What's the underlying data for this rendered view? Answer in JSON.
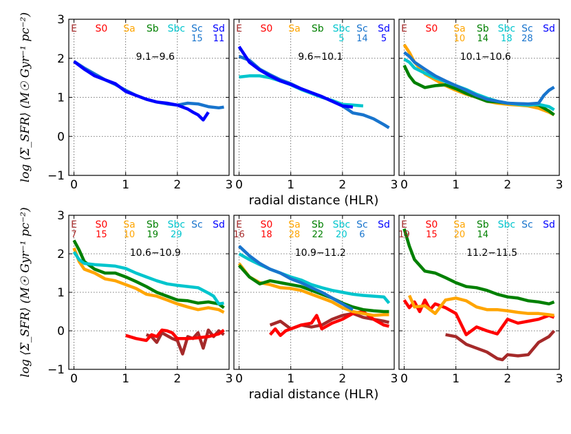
{
  "chart_data": {
    "type": "line",
    "figure": {
      "ylabel": "log ⟨Σ_SFR⟩ (M☉ Gyr⁻¹ pc⁻²)",
      "xlabel": "radial distance (HLR)",
      "xlim": [
        -0.1,
        3.0
      ],
      "ylim": [
        -1,
        3
      ],
      "xticks": [
        "0",
        "1",
        "2",
        "3"
      ],
      "yticks": [
        "−1",
        "0",
        "1",
        "2",
        "3"
      ],
      "grid": true
    },
    "morph_types": [
      "E",
      "S0",
      "Sa",
      "Sb",
      "Sbc",
      "Sc",
      "Sd"
    ],
    "morph_colors": {
      "E": "#a52a2a",
      "S0": "#ff0000",
      "Sa": "#ffa500",
      "Sb": "#008000",
      "Sbc": "#00c5cd",
      "Sc": "#1874cd",
      "Sd": "#0000ff"
    },
    "panels": [
      {
        "mass_range": "9.1−9.6",
        "counts": {
          "Sc": "15",
          "Sd": "11"
        },
        "series": [
          {
            "name": "Sc",
            "x": [
              0,
              0.2,
              0.4,
              0.6,
              0.8,
              1.0,
              1.2,
              1.4,
              1.6,
              1.8,
              2.0,
              2.2,
              2.4,
              2.6,
              2.8,
              2.9
            ],
            "y": [
              1.92,
              1.75,
              1.6,
              1.45,
              1.33,
              1.18,
              1.05,
              0.95,
              0.88,
              0.83,
              0.8,
              0.85,
              0.83,
              0.76,
              0.73,
              0.75
            ]
          },
          {
            "name": "Sd",
            "x": [
              0,
              0.2,
              0.4,
              0.6,
              0.8,
              1.0,
              1.2,
              1.4,
              1.6,
              1.8,
              2.0,
              2.2,
              2.3,
              2.4,
              2.5,
              2.6
            ],
            "y": [
              1.92,
              1.72,
              1.55,
              1.45,
              1.35,
              1.15,
              1.05,
              0.95,
              0.88,
              0.85,
              0.8,
              0.7,
              0.62,
              0.55,
              0.42,
              0.62
            ]
          }
        ]
      },
      {
        "mass_range": "9.6−10.1",
        "counts": {
          "Sbc": "5",
          "Sc": "14",
          "Sd": "5"
        },
        "series": [
          {
            "name": "Sbc",
            "x": [
              0,
              0.2,
              0.4,
              0.6,
              0.8,
              1.0,
              1.2,
              1.4,
              1.6,
              1.8,
              2.0,
              2.2,
              2.4
            ],
            "y": [
              1.52,
              1.55,
              1.55,
              1.5,
              1.42,
              1.32,
              1.2,
              1.1,
              1.0,
              0.92,
              0.82,
              0.8,
              0.78
            ]
          },
          {
            "name": "Sc",
            "x": [
              0,
              0.2,
              0.4,
              0.6,
              0.8,
              1.0,
              1.2,
              1.4,
              1.6,
              1.8,
              2.0,
              2.2,
              2.4,
              2.6,
              2.8,
              2.9
            ],
            "y": [
              2.05,
              1.95,
              1.72,
              1.58,
              1.45,
              1.35,
              1.22,
              1.12,
              1.02,
              0.9,
              0.78,
              0.6,
              0.55,
              0.45,
              0.3,
              0.22
            ]
          },
          {
            "name": "Sd",
            "x": [
              0,
              0.2,
              0.4,
              0.6,
              0.8,
              1.0,
              1.2,
              1.4,
              1.6,
              1.8,
              2.0,
              2.2
            ],
            "y": [
              2.3,
              1.9,
              1.7,
              1.55,
              1.42,
              1.33,
              1.22,
              1.12,
              1.02,
              0.9,
              0.78,
              0.75
            ]
          }
        ]
      },
      {
        "mass_range": "10.1−10.6",
        "counts": {
          "Sa": "10",
          "Sb": "14",
          "Sbc": "18",
          "Sc": "28"
        },
        "series": [
          {
            "name": "Sa",
            "x": [
              0,
              0.1,
              0.2,
              0.4,
              0.6,
              0.8,
              1.0,
              1.2,
              1.4,
              1.6,
              1.8,
              2.0,
              2.2,
              2.4,
              2.6,
              2.8,
              2.9
            ],
            "y": [
              2.35,
              2.15,
              1.9,
              1.6,
              1.45,
              1.3,
              1.18,
              1.08,
              1.0,
              0.9,
              0.85,
              0.82,
              0.8,
              0.78,
              0.72,
              0.62,
              0.55
            ]
          },
          {
            "name": "Sb",
            "x": [
              0,
              0.1,
              0.2,
              0.4,
              0.6,
              0.8,
              1.0,
              1.2,
              1.4,
              1.6,
              1.8,
              2.0,
              2.2,
              2.4,
              2.6,
              2.8,
              2.9
            ],
            "y": [
              1.82,
              1.55,
              1.38,
              1.25,
              1.3,
              1.32,
              1.22,
              1.1,
              1.0,
              0.9,
              0.88,
              0.85,
              0.83,
              0.82,
              0.8,
              0.65,
              0.55
            ]
          },
          {
            "name": "Sbc",
            "x": [
              0,
              0.1,
              0.2,
              0.4,
              0.6,
              0.8,
              1.0,
              1.2,
              1.4,
              1.6,
              1.8,
              2.0,
              2.2,
              2.4,
              2.6,
              2.8,
              2.9
            ],
            "y": [
              1.98,
              1.9,
              1.75,
              1.62,
              1.5,
              1.4,
              1.3,
              1.2,
              1.08,
              0.98,
              0.9,
              0.85,
              0.82,
              0.8,
              0.82,
              0.76,
              0.68
            ]
          },
          {
            "name": "Sc",
            "x": [
              0,
              0.1,
              0.2,
              0.4,
              0.6,
              0.8,
              1.0,
              1.2,
              1.4,
              1.6,
              1.8,
              2.0,
              2.2,
              2.4,
              2.6,
              2.7,
              2.8,
              2.9
            ],
            "y": [
              2.15,
              2.05,
              1.9,
              1.72,
              1.55,
              1.42,
              1.3,
              1.18,
              1.05,
              0.95,
              0.9,
              0.85,
              0.84,
              0.83,
              0.85,
              1.05,
              1.18,
              1.26
            ]
          }
        ]
      },
      {
        "mass_range": "10.6−10.9",
        "counts": {
          "E": "7",
          "S0": "15",
          "Sa": "10",
          "Sb": "19",
          "Sbc": "29"
        },
        "series": [
          {
            "name": "E",
            "x": [
              1.4,
              1.5,
              1.6,
              1.7,
              1.9,
              2.0,
              2.1,
              2.2,
              2.3,
              2.4,
              2.5,
              2.6,
              2.7,
              2.8,
              2.9
            ],
            "y": [
              -0.1,
              -0.15,
              -0.3,
              -0.05,
              -0.2,
              -0.25,
              -0.6,
              -0.15,
              -0.2,
              -0.05,
              -0.45,
              0.02,
              -0.15,
              0.0,
              -0.1
            ]
          },
          {
            "name": "S0",
            "x": [
              1.0,
              1.2,
              1.4,
              1.5,
              1.6,
              1.7,
              1.8,
              1.9,
              2.0,
              2.2,
              2.4,
              2.6,
              2.8,
              2.9
            ],
            "y": [
              -0.12,
              -0.2,
              -0.25,
              -0.1,
              -0.15,
              0.02,
              0.0,
              -0.05,
              -0.2,
              -0.2,
              -0.18,
              -0.15,
              -0.08,
              0.02
            ]
          },
          {
            "name": "Sa",
            "x": [
              0,
              0.1,
              0.2,
              0.4,
              0.6,
              0.8,
              1.0,
              1.2,
              1.4,
              1.6,
              1.8,
              2.0,
              2.2,
              2.4,
              2.6,
              2.8,
              2.9
            ],
            "y": [
              2.15,
              1.8,
              1.6,
              1.5,
              1.35,
              1.3,
              1.2,
              1.1,
              0.95,
              0.9,
              0.8,
              0.7,
              0.62,
              0.55,
              0.6,
              0.55,
              0.48
            ]
          },
          {
            "name": "Sb",
            "x": [
              0,
              0.1,
              0.2,
              0.4,
              0.6,
              0.8,
              1.0,
              1.2,
              1.4,
              1.6,
              1.8,
              2.0,
              2.2,
              2.4,
              2.6,
              2.8,
              2.9
            ],
            "y": [
              2.35,
              2.1,
              1.8,
              1.6,
              1.5,
              1.5,
              1.4,
              1.28,
              1.15,
              1.0,
              0.9,
              0.8,
              0.78,
              0.72,
              0.75,
              0.7,
              0.6
            ]
          },
          {
            "name": "Sbc",
            "x": [
              0,
              0.1,
              0.2,
              0.4,
              0.6,
              0.8,
              1.0,
              1.2,
              1.4,
              1.6,
              1.8,
              2.0,
              2.2,
              2.4,
              2.6,
              2.7,
              2.8,
              2.9
            ],
            "y": [
              2.05,
              1.85,
              1.75,
              1.72,
              1.7,
              1.68,
              1.62,
              1.5,
              1.4,
              1.3,
              1.22,
              1.18,
              1.15,
              1.12,
              0.98,
              0.9,
              0.7,
              0.72
            ]
          }
        ]
      },
      {
        "mass_range": "10.9−11.2",
        "counts": {
          "E": "16",
          "S0": "18",
          "Sa": "28",
          "Sb": "22",
          "Sbc": "20",
          "Sc": "6"
        },
        "series": [
          {
            "name": "E",
            "x": [
              0.6,
              0.8,
              1.0,
              1.2,
              1.4,
              1.6,
              1.8,
              2.0,
              2.2,
              2.4,
              2.6,
              2.8,
              2.9
            ],
            "y": [
              0.15,
              0.25,
              0.05,
              0.15,
              0.1,
              0.15,
              0.3,
              0.4,
              0.45,
              0.35,
              0.3,
              0.25,
              0.22
            ]
          },
          {
            "name": "S0",
            "x": [
              0.6,
              0.7,
              0.8,
              0.9,
              1.0,
              1.2,
              1.4,
              1.5,
              1.6,
              1.8,
              2.0,
              2.2,
              2.4,
              2.6,
              2.8,
              2.9
            ],
            "y": [
              -0.1,
              0.05,
              -0.12,
              0.0,
              0.05,
              0.15,
              0.2,
              0.4,
              0.05,
              0.2,
              0.3,
              0.45,
              0.5,
              0.3,
              0.15,
              0.12
            ]
          },
          {
            "name": "Sa",
            "x": [
              0,
              0.2,
              0.4,
              0.6,
              0.8,
              1.0,
              1.2,
              1.4,
              1.6,
              1.8,
              2.0,
              2.2,
              2.4,
              2.6,
              2.8,
              2.9
            ],
            "y": [
              1.75,
              1.4,
              1.25,
              1.2,
              1.12,
              1.1,
              1.05,
              0.95,
              0.85,
              0.75,
              0.6,
              0.5,
              0.45,
              0.4,
              0.42,
              0.42
            ]
          },
          {
            "name": "Sb",
            "x": [
              0,
              0.2,
              0.4,
              0.6,
              0.8,
              1.0,
              1.2,
              1.4,
              1.6,
              1.8,
              2.0,
              2.2,
              2.4,
              2.6,
              2.8,
              2.9
            ],
            "y": [
              1.7,
              1.4,
              1.22,
              1.3,
              1.25,
              1.2,
              1.15,
              1.05,
              0.95,
              0.85,
              0.72,
              0.62,
              0.55,
              0.52,
              0.5,
              0.5
            ]
          },
          {
            "name": "Sbc",
            "x": [
              0,
              0.2,
              0.4,
              0.6,
              0.8,
              1.0,
              1.2,
              1.4,
              1.6,
              1.8,
              2.0,
              2.2,
              2.4,
              2.6,
              2.8,
              2.9
            ],
            "y": [
              2.0,
              1.85,
              1.72,
              1.6,
              1.5,
              1.4,
              1.32,
              1.2,
              1.12,
              1.05,
              1.0,
              0.95,
              0.92,
              0.9,
              0.88,
              0.72
            ]
          },
          {
            "name": "Sc",
            "x": [
              0,
              0.2,
              0.4,
              0.6,
              0.8,
              1.0,
              1.2,
              1.4,
              1.6,
              1.8,
              2.0,
              2.2
            ],
            "y": [
              2.2,
              1.95,
              1.75,
              1.6,
              1.5,
              1.35,
              1.25,
              1.12,
              1.0,
              0.85,
              0.7,
              0.55
            ]
          }
        ]
      },
      {
        "mass_range": "11.2−11.5",
        "counts": {
          "E": "19",
          "S0": "15",
          "Sa": "20",
          "Sb": "14"
        },
        "series": [
          {
            "name": "E",
            "x": [
              0.8,
              1.0,
              1.2,
              1.4,
              1.6,
              1.8,
              1.9,
              2.0,
              2.2,
              2.4,
              2.6,
              2.8,
              2.9
            ],
            "y": [
              -0.1,
              -0.15,
              -0.35,
              -0.45,
              -0.55,
              -0.72,
              -0.75,
              -0.62,
              -0.65,
              -0.62,
              -0.3,
              -0.15,
              0.0
            ]
          },
          {
            "name": "S0",
            "x": [
              0,
              0.1,
              0.2,
              0.3,
              0.4,
              0.5,
              0.6,
              0.8,
              1.0,
              1.2,
              1.4,
              1.6,
              1.8,
              2.0,
              2.2,
              2.4,
              2.6,
              2.8,
              2.9
            ],
            "y": [
              0.8,
              0.6,
              0.75,
              0.5,
              0.8,
              0.55,
              0.7,
              0.6,
              0.45,
              -0.1,
              0.1,
              0.0,
              -0.08,
              0.3,
              0.2,
              0.25,
              0.3,
              0.4,
              0.35
            ]
          },
          {
            "name": "Sa",
            "x": [
              0.1,
              0.2,
              0.4,
              0.6,
              0.8,
              1.0,
              1.2,
              1.4,
              1.6,
              1.8,
              2.0,
              2.2,
              2.4,
              2.6,
              2.8,
              2.9
            ],
            "y": [
              0.92,
              0.62,
              0.65,
              0.45,
              0.8,
              0.85,
              0.78,
              0.62,
              0.55,
              0.55,
              0.52,
              0.48,
              0.45,
              0.45,
              0.42,
              0.4
            ]
          },
          {
            "name": "Sb",
            "x": [
              0,
              0.1,
              0.2,
              0.4,
              0.6,
              0.8,
              1.0,
              1.2,
              1.4,
              1.6,
              1.8,
              2.0,
              2.2,
              2.4,
              2.6,
              2.8,
              2.9
            ],
            "y": [
              2.65,
              2.2,
              1.85,
              1.55,
              1.5,
              1.38,
              1.25,
              1.15,
              1.12,
              1.05,
              0.95,
              0.88,
              0.85,
              0.78,
              0.75,
              0.7,
              0.75
            ]
          }
        ]
      }
    ]
  }
}
